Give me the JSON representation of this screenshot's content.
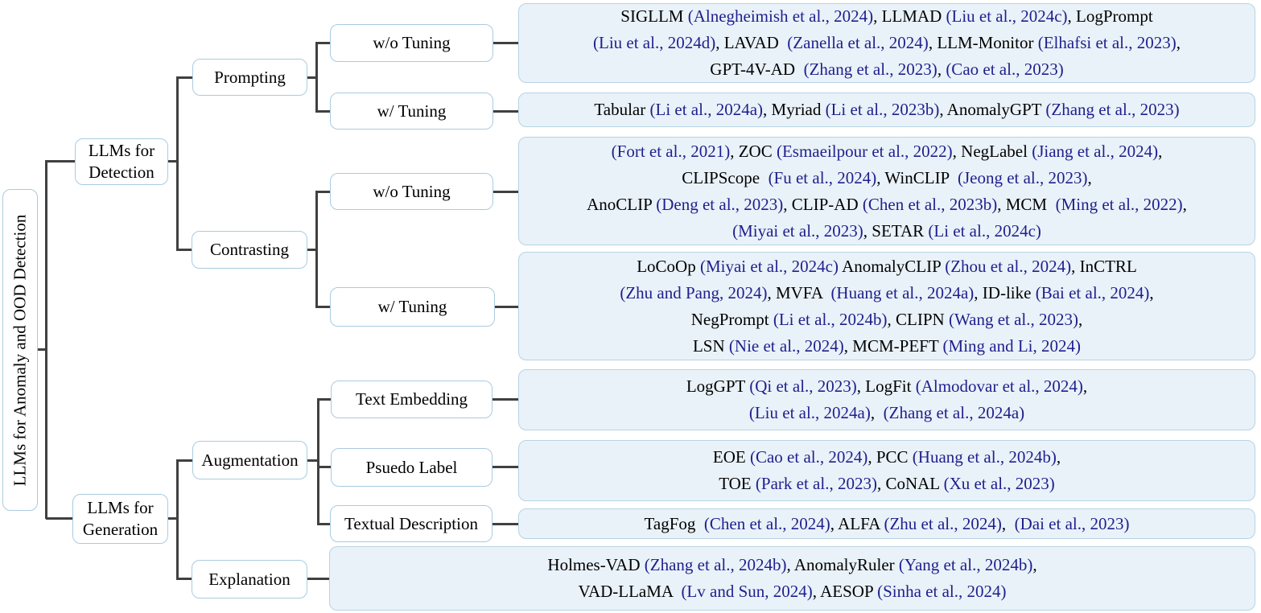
{
  "colors": {
    "citation": "#1f1f8c",
    "line": "#404040",
    "node_bg": "#ffffff",
    "node_border": "#a9cbe0",
    "leaf_bg": "#e9f2f9",
    "leaf_border": "#b7d3e3"
  },
  "root": {
    "label": "LLMs for Anomaly and OOD Detection"
  },
  "nodes": {
    "detection": {
      "label": "LLMs for Detection"
    },
    "generation": {
      "label": "LLMs for Generation"
    },
    "prompting": {
      "label": "Prompting"
    },
    "contrasting": {
      "label": "Contrasting"
    },
    "augmentation": {
      "label": "Augmentation"
    },
    "explanation": {
      "label": "Explanation"
    },
    "prompting_wo": {
      "label": "w/o Tuning"
    },
    "prompting_w": {
      "label": "w/ Tuning"
    },
    "contrasting_wo": {
      "label": "w/o Tuning"
    },
    "contrasting_w": {
      "label": "w/ Tuning"
    },
    "text_embedding": {
      "label": "Text Embedding"
    },
    "psuedo_label": {
      "label": "Psuedo Label"
    },
    "textual_description": {
      "label": "Textual Description"
    }
  },
  "leaves": {
    "prompting_wo": {
      "lines": [
        [
          {
            "t": "SIGLLM ",
            "c": "k"
          },
          {
            "t": "(Alnegheimish et al., 2024)",
            "c": "b"
          },
          {
            "t": ", LLMAD ",
            "c": "k"
          },
          {
            "t": "(Liu et al., 2024c)",
            "c": "b"
          },
          {
            "t": ", LogPrompt",
            "c": "k"
          }
        ],
        [
          {
            "t": "(Liu et al., 2024d)",
            "c": "b"
          },
          {
            "t": ", LAVAD  ",
            "c": "k"
          },
          {
            "t": "(Zanella et al., 2024)",
            "c": "b"
          },
          {
            "t": ", LLM-Monitor ",
            "c": "k"
          },
          {
            "t": "(Elhafsi et al., 2023)",
            "c": "b"
          },
          {
            "t": ",",
            "c": "k"
          }
        ],
        [
          {
            "t": "GPT-4V-AD  ",
            "c": "k"
          },
          {
            "t": "(Zhang et al., 2023)",
            "c": "b"
          },
          {
            "t": ", ",
            "c": "k"
          },
          {
            "t": "(Cao et al., 2023)",
            "c": "b"
          }
        ]
      ]
    },
    "prompting_w": {
      "lines": [
        [
          {
            "t": "Tabular ",
            "c": "k"
          },
          {
            "t": "(Li et al., 2024a)",
            "c": "b"
          },
          {
            "t": ", Myriad ",
            "c": "k"
          },
          {
            "t": "(Li et al., 2023b)",
            "c": "b"
          },
          {
            "t": ", AnomalyGPT ",
            "c": "k"
          },
          {
            "t": "(Zhang et al., 2023)",
            "c": "b"
          }
        ]
      ]
    },
    "contrasting_wo": {
      "lines": [
        [
          {
            "t": "(Fort et al., 2021)",
            "c": "b"
          },
          {
            "t": ", ZOC ",
            "c": "k"
          },
          {
            "t": "(Esmaeilpour et al., 2022)",
            "c": "b"
          },
          {
            "t": ", NegLabel ",
            "c": "k"
          },
          {
            "t": "(Jiang et al., 2024)",
            "c": "b"
          },
          {
            "t": ",",
            "c": "k"
          }
        ],
        [
          {
            "t": "CLIPScope  ",
            "c": "k"
          },
          {
            "t": "(Fu et al., 2024)",
            "c": "b"
          },
          {
            "t": ", WinCLIP  ",
            "c": "k"
          },
          {
            "t": "(Jeong et al., 2023)",
            "c": "b"
          },
          {
            "t": ",",
            "c": "k"
          }
        ],
        [
          {
            "t": "AnoCLIP ",
            "c": "k"
          },
          {
            "t": "(Deng et al., 2023)",
            "c": "b"
          },
          {
            "t": ", CLIP-AD ",
            "c": "k"
          },
          {
            "t": "(Chen et al., 2023b)",
            "c": "b"
          },
          {
            "t": ", MCM  ",
            "c": "k"
          },
          {
            "t": "(Ming et al., 2022)",
            "c": "b"
          },
          {
            "t": ",",
            "c": "k"
          }
        ],
        [
          {
            "t": "(Miyai et al., 2023)",
            "c": "b"
          },
          {
            "t": ", SETAR ",
            "c": "k"
          },
          {
            "t": "(Li et al., 2024c)",
            "c": "b"
          }
        ]
      ]
    },
    "contrasting_w": {
      "lines": [
        [
          {
            "t": "LoCoOp ",
            "c": "k"
          },
          {
            "t": "(Miyai et al., 2024c)",
            "c": "b"
          },
          {
            "t": " AnomalyCLIP ",
            "c": "k"
          },
          {
            "t": "(Zhou et al., 2024)",
            "c": "b"
          },
          {
            "t": ", InCTRL",
            "c": "k"
          }
        ],
        [
          {
            "t": "(Zhu and Pang, 2024)",
            "c": "b"
          },
          {
            "t": ", MVFA  ",
            "c": "k"
          },
          {
            "t": "(Huang et al., 2024a)",
            "c": "b"
          },
          {
            "t": ", ID-like ",
            "c": "k"
          },
          {
            "t": "(Bai et al., 2024)",
            "c": "b"
          },
          {
            "t": ",",
            "c": "k"
          }
        ],
        [
          {
            "t": "NegPrompt ",
            "c": "k"
          },
          {
            "t": "(Li et al., 2024b)",
            "c": "b"
          },
          {
            "t": ", CLIPN ",
            "c": "k"
          },
          {
            "t": "(Wang et al., 2023)",
            "c": "b"
          },
          {
            "t": ",",
            "c": "k"
          }
        ],
        [
          {
            "t": "LSN ",
            "c": "k"
          },
          {
            "t": "(Nie et al., 2024)",
            "c": "b"
          },
          {
            "t": ", MCM-PEFT ",
            "c": "k"
          },
          {
            "t": "(Ming and Li, 2024)",
            "c": "b"
          }
        ]
      ]
    },
    "text_embedding": {
      "lines": [
        [
          {
            "t": "LogGPT ",
            "c": "k"
          },
          {
            "t": "(Qi et al., 2023)",
            "c": "b"
          },
          {
            "t": ", LogFit ",
            "c": "k"
          },
          {
            "t": "(Almodovar et al., 2024)",
            "c": "b"
          },
          {
            "t": ",",
            "c": "k"
          }
        ],
        [
          {
            "t": "(Liu et al., 2024a)",
            "c": "b"
          },
          {
            "t": ",  ",
            "c": "k"
          },
          {
            "t": "(Zhang et al., 2024a)",
            "c": "b"
          }
        ]
      ]
    },
    "psuedo_label": {
      "lines": [
        [
          {
            "t": "EOE ",
            "c": "k"
          },
          {
            "t": "(Cao et al., 2024)",
            "c": "b"
          },
          {
            "t": ", PCC ",
            "c": "k"
          },
          {
            "t": "(Huang et al., 2024b)",
            "c": "b"
          },
          {
            "t": ",",
            "c": "k"
          }
        ],
        [
          {
            "t": "TOE ",
            "c": "k"
          },
          {
            "t": "(Park et al., 2023)",
            "c": "b"
          },
          {
            "t": ", CoNAL ",
            "c": "k"
          },
          {
            "t": "(Xu et al., 2023)",
            "c": "b"
          }
        ]
      ]
    },
    "textual_description": {
      "lines": [
        [
          {
            "t": "TagFog  ",
            "c": "k"
          },
          {
            "t": "(Chen et al., 2024)",
            "c": "b"
          },
          {
            "t": ", ALFA ",
            "c": "k"
          },
          {
            "t": "(Zhu et al., 2024)",
            "c": "b"
          },
          {
            "t": ",  ",
            "c": "k"
          },
          {
            "t": "(Dai et al., 2023)",
            "c": "b"
          }
        ]
      ]
    },
    "explanation": {
      "lines": [
        [
          {
            "t": "Holmes-VAD ",
            "c": "k"
          },
          {
            "t": "(Zhang et al., 2024b)",
            "c": "b"
          },
          {
            "t": ", AnomalyRuler ",
            "c": "k"
          },
          {
            "t": "(Yang et al., 2024b)",
            "c": "b"
          },
          {
            "t": ",",
            "c": "k"
          }
        ],
        [
          {
            "t": "VAD-LLaMA  ",
            "c": "k"
          },
          {
            "t": "(Lv and Sun, 2024)",
            "c": "b"
          },
          {
            "t": ", AESOP ",
            "c": "k"
          },
          {
            "t": "(Sinha et al., 2024)",
            "c": "b"
          }
        ]
      ]
    }
  }
}
